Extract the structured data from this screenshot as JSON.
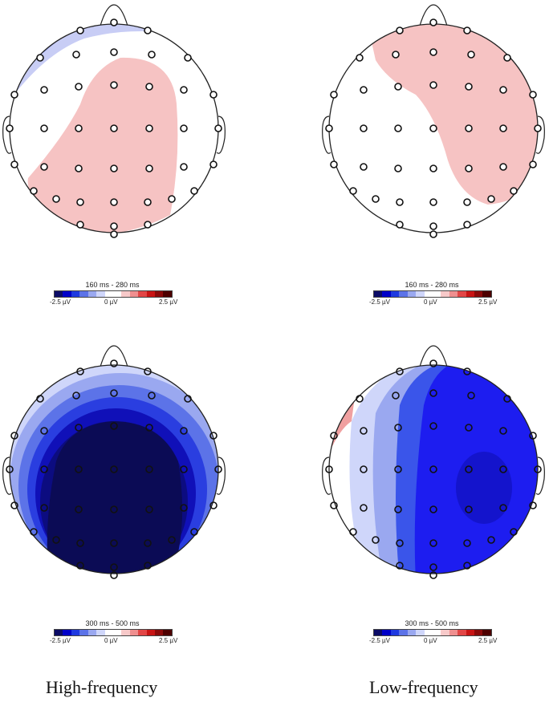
{
  "colorbar": {
    "min_label": "-2.5 µV",
    "zero_label": "0 µV",
    "max_label": "2.5 µV",
    "colors": [
      "#0b0b66",
      "#0000c8",
      "#1f3ae0",
      "#5c73e8",
      "#9aa8f0",
      "#cfd6fa",
      "#ffffff",
      "#ffffff",
      "#f7c9c9",
      "#ef8f8f",
      "#e24646",
      "#c81414",
      "#8a0a0a",
      "#4d0000"
    ]
  },
  "maps": [
    {
      "id": "top-left",
      "time_window": "160 ms - 280 ms",
      "condition": "",
      "dominant_color": "#f6c3c3"
    },
    {
      "id": "top-right",
      "time_window": "160 ms - 280 ms",
      "condition": "",
      "dominant_color": "#f6c3c3"
    },
    {
      "id": "bottom-left",
      "time_window": "300 ms - 500 ms",
      "condition": "High-frequency",
      "dominant_color": "#0b0b55"
    },
    {
      "id": "bottom-right",
      "time_window": "300 ms - 500 ms",
      "condition": "Low-frequency",
      "dominant_color": "#1d1df0"
    }
  ]
}
